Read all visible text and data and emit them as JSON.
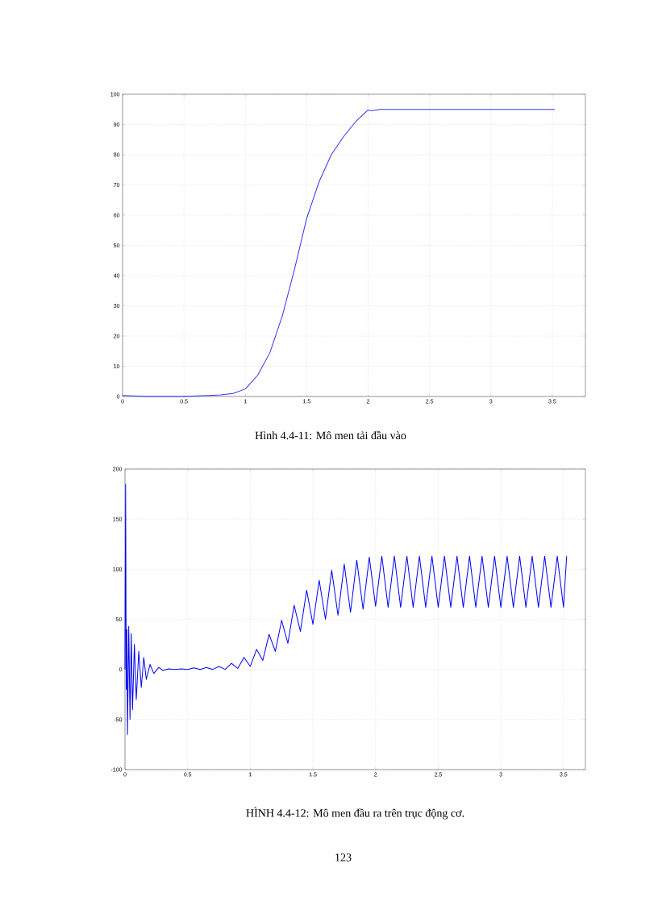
{
  "chart_data": [
    {
      "type": "line",
      "title": "Hình 4.4-11: Mô men tải  đầu vào",
      "x": [
        0,
        0.2,
        0.5,
        0.8,
        0.9,
        1.0,
        1.1,
        1.2,
        1.3,
        1.4,
        1.5,
        1.6,
        1.7,
        1.8,
        1.9,
        2.0,
        2.02,
        2.1,
        3.52
      ],
      "series": [
        {
          "color": "#3333ff",
          "values": [
            0.3,
            0,
            0,
            0.5,
            1,
            2.5,
            7,
            14.5,
            26.5,
            42,
            59,
            71,
            80,
            86,
            91,
            94.8,
            94.5,
            95,
            95
          ]
        }
      ],
      "xlim": [
        0,
        3.77
      ],
      "ylim": [
        0,
        100
      ],
      "xticks": [
        0,
        0.5,
        1,
        1.5,
        2,
        2.5,
        3,
        3.5
      ],
      "yticks": [
        0,
        10,
        20,
        30,
        40,
        50,
        60,
        70,
        80,
        90,
        100
      ],
      "grid": true,
      "line_style": "solid",
      "marker": "none"
    },
    {
      "type": "line",
      "title": "HÌNH 4.4-12: Mô men đầu ra trên trục động cơ.",
      "annotations": [
        "123"
      ],
      "x": [
        0,
        0.005,
        0.01,
        0.015,
        0.02,
        0.03,
        0.04,
        0.05,
        0.06,
        0.075,
        0.09,
        0.11,
        0.13,
        0.15,
        0.17,
        0.2,
        0.23,
        0.27,
        0.3,
        0.35,
        0.4,
        0.45,
        0.5,
        0.55,
        0.6,
        0.65,
        0.7,
        0.75,
        0.8,
        0.85,
        0.9,
        0.95,
        1.0,
        1.05,
        1.1,
        1.15,
        1.2,
        1.25,
        1.3,
        1.35,
        1.4,
        1.45,
        1.5,
        1.55,
        1.6,
        1.65,
        1.7,
        1.75,
        1.8,
        1.85,
        1.9,
        1.95,
        2.0,
        2.05,
        2.1,
        2.15,
        2.2,
        2.25,
        2.3,
        2.35,
        2.4,
        2.45,
        2.5,
        2.55,
        2.6,
        2.65,
        2.7,
        2.75,
        2.8,
        2.85,
        2.9,
        2.95,
        3.0,
        3.05,
        3.1,
        3.15,
        3.2,
        3.25,
        3.3,
        3.35,
        3.4,
        3.45,
        3.5,
        3.525
      ],
      "series": [
        {
          "color": "#0000ff",
          "values": [
            0,
            185,
            -20,
            40,
            -65,
            43,
            -50,
            36,
            -40,
            25,
            -30,
            18,
            -18,
            12,
            -10,
            5,
            -4,
            2,
            -1,
            0.5,
            0,
            0.5,
            0,
            1.5,
            0,
            2,
            0,
            3,
            0,
            6,
            1,
            12,
            3,
            20,
            9,
            35,
            18,
            49,
            26,
            64,
            38,
            79,
            45,
            89,
            50,
            99,
            54,
            105,
            57,
            109,
            60,
            112,
            63,
            113,
            62,
            113,
            62,
            113,
            62,
            113,
            62,
            113,
            62,
            113,
            62,
            113,
            62,
            113,
            62,
            113,
            62,
            113,
            62,
            113,
            62,
            113,
            62,
            113,
            62,
            113,
            62,
            113,
            62,
            113
          ]
        }
      ],
      "xlim": [
        0,
        3.675
      ],
      "ylim": [
        -100,
        200
      ],
      "xticks": [
        0,
        0.5,
        1,
        1.5,
        2,
        2.5,
        3,
        3.5
      ],
      "yticks": [
        -100,
        -50,
        0,
        50,
        100,
        150,
        200
      ],
      "grid": true,
      "line_style": "solid",
      "marker": "none"
    }
  ]
}
